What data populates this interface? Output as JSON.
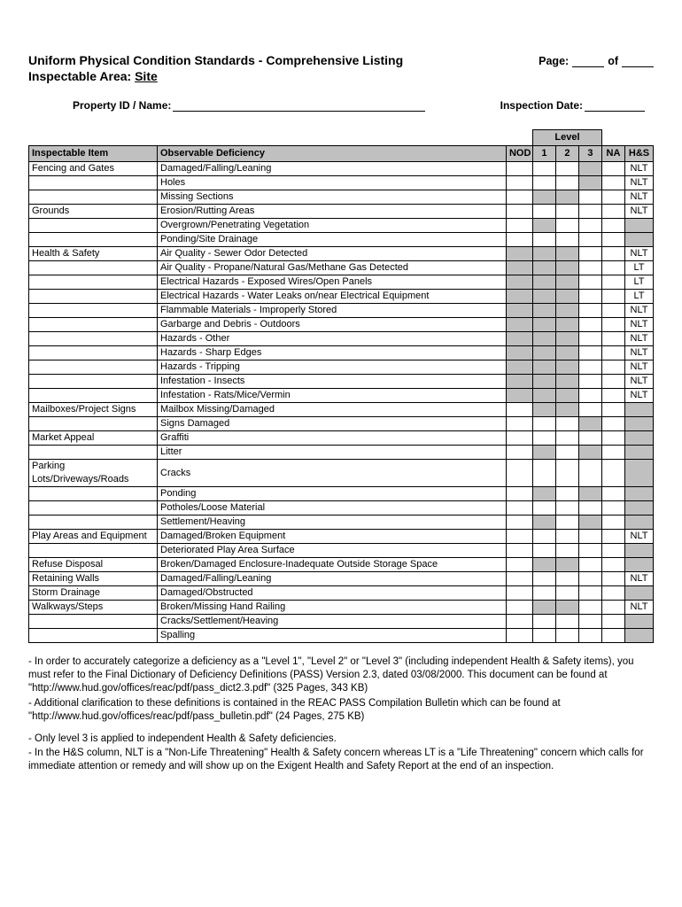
{
  "header": {
    "title": "Uniform Physical Condition Standards - Comprehensive Listing",
    "page_label": "Page:",
    "of_label": "of",
    "area_prefix": "Inspectable Area:",
    "area_value": "Site",
    "property_label": "Property ID / Name:",
    "inspection_label": "Inspection Date:"
  },
  "table": {
    "headers": {
      "item": "Inspectable Item",
      "deficiency": "Observable Deficiency",
      "nod": "NOD",
      "l1": "1",
      "l2": "2",
      "l3": "3",
      "na": "NA",
      "hs": "H&S",
      "level": "Level"
    },
    "rows": [
      {
        "item": "Fencing and Gates",
        "def": "Damaged/Falling/Leaning",
        "shade": [
          0,
          0,
          0,
          1,
          0,
          0
        ],
        "hs": "NLT"
      },
      {
        "item": "",
        "def": "Holes",
        "shade": [
          0,
          0,
          0,
          1,
          0,
          0
        ],
        "hs": "NLT"
      },
      {
        "item": "",
        "def": "Missing Sections",
        "shade": [
          0,
          1,
          1,
          0,
          0,
          0
        ],
        "hs": "NLT"
      },
      {
        "item": "Grounds",
        "def": "Erosion/Rutting Areas",
        "shade": [
          0,
          0,
          0,
          0,
          0,
          0
        ],
        "hs": "NLT"
      },
      {
        "item": "",
        "def": "Overgrown/Penetrating Vegetation",
        "shade": [
          0,
          1,
          0,
          0,
          0,
          1
        ],
        "hs": ""
      },
      {
        "item": "",
        "def": "Ponding/Site Drainage",
        "shade": [
          0,
          0,
          0,
          0,
          0,
          1
        ],
        "hs": ""
      },
      {
        "item": "Health & Safety",
        "def": "Air Quality - Sewer Odor Detected",
        "shade": [
          1,
          1,
          1,
          0,
          0,
          0
        ],
        "hs": "NLT"
      },
      {
        "item": "",
        "def": "Air Quality - Propane/Natural Gas/Methane Gas Detected",
        "shade": [
          1,
          1,
          1,
          0,
          0,
          0
        ],
        "hs": "LT"
      },
      {
        "item": "",
        "def": "Electrical Hazards - Exposed Wires/Open Panels",
        "shade": [
          1,
          1,
          1,
          0,
          0,
          0
        ],
        "hs": "LT"
      },
      {
        "item": "",
        "def": "Electrical Hazards - Water Leaks on/near Electrical Equipment",
        "shade": [
          1,
          1,
          1,
          0,
          0,
          0
        ],
        "hs": "LT"
      },
      {
        "item": "",
        "def": "Flammable Materials - Improperly Stored",
        "shade": [
          1,
          1,
          1,
          0,
          0,
          0
        ],
        "hs": "NLT"
      },
      {
        "item": "",
        "def": "Garbarge and Debris - Outdoors",
        "shade": [
          1,
          1,
          1,
          0,
          0,
          0
        ],
        "hs": "NLT"
      },
      {
        "item": "",
        "def": "Hazards - Other",
        "shade": [
          1,
          1,
          1,
          0,
          0,
          0
        ],
        "hs": "NLT"
      },
      {
        "item": "",
        "def": "Hazards - Sharp Edges",
        "shade": [
          1,
          1,
          1,
          0,
          0,
          0
        ],
        "hs": "NLT"
      },
      {
        "item": "",
        "def": "Hazards - Tripping",
        "shade": [
          1,
          1,
          1,
          0,
          0,
          0
        ],
        "hs": "NLT"
      },
      {
        "item": "",
        "def": "Infestation - Insects",
        "shade": [
          1,
          1,
          1,
          0,
          0,
          0
        ],
        "hs": "NLT"
      },
      {
        "item": "",
        "def": "Infestation - Rats/Mice/Vermin",
        "shade": [
          1,
          1,
          1,
          0,
          0,
          0
        ],
        "hs": "NLT"
      },
      {
        "item": "Mailboxes/Project Signs",
        "def": "Mailbox Missing/Damaged",
        "shade": [
          0,
          1,
          1,
          0,
          0,
          1
        ],
        "hs": ""
      },
      {
        "item": "",
        "def": "Signs Damaged",
        "shade": [
          0,
          0,
          0,
          1,
          0,
          1
        ],
        "hs": ""
      },
      {
        "item": "Market Appeal",
        "def": "Graffiti",
        "shade": [
          0,
          0,
          0,
          0,
          0,
          1
        ],
        "hs": ""
      },
      {
        "item": "",
        "def": "Litter",
        "shade": [
          0,
          1,
          0,
          1,
          0,
          1
        ],
        "hs": ""
      },
      {
        "item": "Parking Lots/Driveways/Roads",
        "def": "Cracks",
        "shade": [
          0,
          0,
          0,
          0,
          0,
          1
        ],
        "hs": ""
      },
      {
        "item": "",
        "def": "Ponding",
        "shade": [
          0,
          1,
          0,
          1,
          0,
          1
        ],
        "hs": ""
      },
      {
        "item": "",
        "def": "Potholes/Loose Material",
        "shade": [
          0,
          0,
          0,
          0,
          0,
          1
        ],
        "hs": ""
      },
      {
        "item": "",
        "def": "Settlement/Heaving",
        "shade": [
          0,
          1,
          0,
          1,
          0,
          1
        ],
        "hs": ""
      },
      {
        "item": "Play Areas and Equipment",
        "def": "Damaged/Broken Equipment",
        "shade": [
          0,
          0,
          0,
          0,
          0,
          0
        ],
        "hs": "NLT"
      },
      {
        "item": "",
        "def": "Deteriorated Play Area Surface",
        "shade": [
          0,
          0,
          0,
          0,
          0,
          1
        ],
        "hs": ""
      },
      {
        "item": "Refuse Disposal",
        "def": "Broken/Damaged Enclosure-Inadequate Outside Storage Space",
        "shade": [
          0,
          1,
          1,
          0,
          0,
          1
        ],
        "hs": ""
      },
      {
        "item": "Retaining Walls",
        "def": "Damaged/Falling/Leaning",
        "shade": [
          0,
          0,
          0,
          0,
          0,
          0
        ],
        "hs": "NLT"
      },
      {
        "item": "Storm Drainage",
        "def": "Damaged/Obstructed",
        "shade": [
          0,
          0,
          0,
          0,
          0,
          1
        ],
        "hs": ""
      },
      {
        "item": "Walkways/Steps",
        "def": "Broken/Missing Hand Railing",
        "shade": [
          0,
          1,
          1,
          0,
          0,
          0
        ],
        "hs": "NLT"
      },
      {
        "item": "",
        "def": "Cracks/Settlement/Heaving",
        "shade": [
          0,
          0,
          0,
          0,
          0,
          1
        ],
        "hs": ""
      },
      {
        "item": "",
        "def": "Spalling",
        "shade": [
          0,
          0,
          0,
          0,
          0,
          1
        ],
        "hs": ""
      }
    ]
  },
  "notes": {
    "p1": "- In order to accurately categorize a deficiency as a \"Level 1\", \"Level 2\" or \"Level 3\" (including independent Health & Safety items), you must refer to the Final Dictionary of Deficiency Definitions (PASS) Version 2.3, dated 03/08/2000.  This document can be found at \"http://www.hud.gov/offices/reac/pdf/pass_dict2.3.pdf\"  (325 Pages, 343 KB)",
    "p2": "- Additional clarification to these definitions is contained in the REAC PASS Compilation Bulletin which can be found at \"http://www.hud.gov/offices/reac/pdf/pass_bulletin.pdf\"  (24 Pages, 275 KB)",
    "p3": "- Only level 3  is applied to independent Health & Safety deficiencies.",
    "p4": "- In the H&S column, NLT is a \"Non-Life Threatening\" Health & Safety concern whereas LT is a \"Life Threatening\" concern which calls for immediate attention or remedy and will show up on the Exigent Health and Safety Report at the end of an inspection."
  },
  "style": {
    "header_bg": "#c0c0c0",
    "border_color": "#000000",
    "page_bg": "#ffffff",
    "font_family": "Arial",
    "base_font_size": 11
  }
}
